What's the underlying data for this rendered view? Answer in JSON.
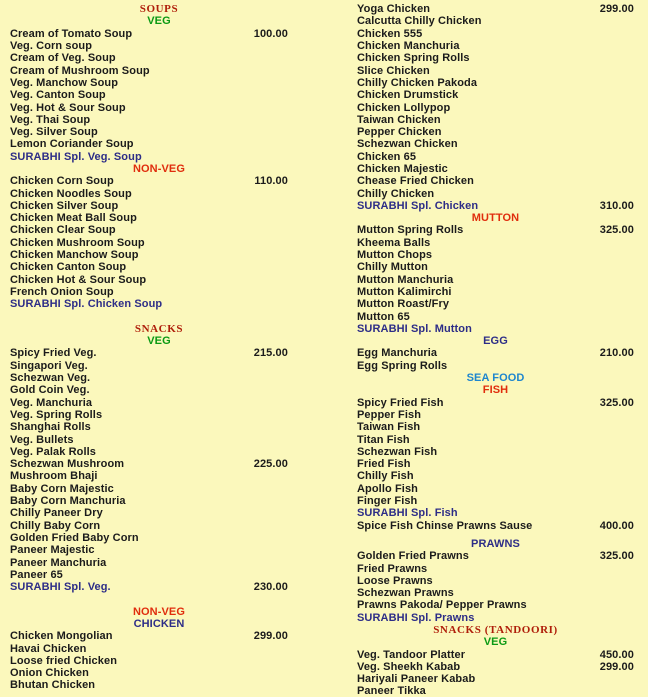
{
  "title": "SURABHI restaurant menu page",
  "colors": {
    "background": "#FBF8BC",
    "serif_red": "#AF1E0A",
    "sans_red": "#E02D0D",
    "green": "#0B9A14",
    "navy": "#2D2D87",
    "sea_blue": "#1E86CE",
    "item_text": "#1B1B1B"
  },
  "menu": {
    "columns": [
      {
        "name": "left",
        "rows": [
          {
            "t": "h",
            "s": "serif-red",
            "text": "SOUPS"
          },
          {
            "t": "h",
            "s": "green",
            "text": "VEG"
          },
          {
            "t": "i",
            "text": "Cream of Tomato Soup",
            "price": "100.00"
          },
          {
            "t": "i",
            "text": "Veg. Corn soup"
          },
          {
            "t": "i",
            "text": "Cream of Veg. Soup"
          },
          {
            "t": "i",
            "text": "Cream of Mushroom Soup"
          },
          {
            "t": "i",
            "text": "Veg. Manchow Soup"
          },
          {
            "t": "i",
            "text": "Veg. Canton Soup"
          },
          {
            "t": "i",
            "text": "Veg. Hot & Sour Soup"
          },
          {
            "t": "i",
            "text": "Veg. Thai Soup"
          },
          {
            "t": "i",
            "text": "Veg. Silver Soup"
          },
          {
            "t": "i",
            "text": "Lemon Coriander Soup"
          },
          {
            "t": "i",
            "s": "navy",
            "text": "SURABHI Spl. Veg. Soup"
          },
          {
            "t": "h",
            "s": "sans-red",
            "text": "NON-VEG"
          },
          {
            "t": "i",
            "text": "Chicken Corn Soup",
            "price": "110.00"
          },
          {
            "t": "i",
            "text": "Chicken Noodles Soup"
          },
          {
            "t": "i",
            "text": "Chicken Silver Soup"
          },
          {
            "t": "i",
            "text": "Chicken Meat Ball Soup"
          },
          {
            "t": "i",
            "text": "Chicken Clear Soup"
          },
          {
            "t": "i",
            "text": "Chicken Mushroom Soup"
          },
          {
            "t": "i",
            "text": "Chicken Manchow Soup"
          },
          {
            "t": "i",
            "text": "Chicken Canton Soup"
          },
          {
            "t": "i",
            "text": "Chicken Hot & Sour Soup"
          },
          {
            "t": "i",
            "text": "French Onion Soup"
          },
          {
            "t": "i",
            "s": "navy",
            "text": "SURABHI Spl. Chicken Soup"
          },
          {
            "t": "gap"
          },
          {
            "t": "h",
            "s": "serif-red",
            "text": "SNACKS"
          },
          {
            "t": "h",
            "s": "green",
            "text": "VEG"
          },
          {
            "t": "i",
            "text": "Spicy Fried Veg.",
            "price": "215.00"
          },
          {
            "t": "i",
            "text": "Singapori Veg."
          },
          {
            "t": "i",
            "text": "Schezwan Veg."
          },
          {
            "t": "i",
            "text": "Gold Coin Veg."
          },
          {
            "t": "i",
            "text": "Veg. Manchuria"
          },
          {
            "t": "i",
            "text": "Veg. Spring Rolls"
          },
          {
            "t": "i",
            "text": "Shanghai Rolls"
          },
          {
            "t": "i",
            "text": "Veg. Bullets"
          },
          {
            "t": "i",
            "text": "Veg. Palak Rolls"
          },
          {
            "t": "i",
            "text": "Schezwan Mushroom",
            "price": "225.00"
          },
          {
            "t": "i",
            "text": "Mushroom Bhaji"
          },
          {
            "t": "i",
            "text": "Baby Corn Majestic"
          },
          {
            "t": "i",
            "text": "Baby Corn Manchuria"
          },
          {
            "t": "i",
            "text": "Chilly Paneer Dry"
          },
          {
            "t": "i",
            "text": "Chilly Baby Corn"
          },
          {
            "t": "i",
            "text": "Golden Fried Baby Corn"
          },
          {
            "t": "i",
            "text": "Paneer Majestic"
          },
          {
            "t": "i",
            "text": "Paneer Manchuria"
          },
          {
            "t": "i",
            "text": "Paneer 65"
          },
          {
            "t": "i",
            "s": "navy",
            "text": "SURABHI Spl. Veg.",
            "price": "230.00"
          },
          {
            "t": "gap"
          },
          {
            "t": "h",
            "s": "sans-red",
            "text": "NON-VEG"
          },
          {
            "t": "h",
            "s": "navy",
            "text": "CHICKEN"
          },
          {
            "t": "i",
            "text": "Chicken Mongolian",
            "price": "299.00"
          },
          {
            "t": "i",
            "text": "Havai Chicken"
          },
          {
            "t": "i",
            "text": "Loose fried Chicken"
          },
          {
            "t": "i",
            "text": "Onion Chicken"
          },
          {
            "t": "i",
            "text": "Bhutan Chicken"
          }
        ]
      },
      {
        "name": "right",
        "rows": [
          {
            "t": "i",
            "text": "Yoga Chicken",
            "price": "299.00"
          },
          {
            "t": "i",
            "text": "Calcutta Chilly Chicken"
          },
          {
            "t": "i",
            "text": "Chicken 555"
          },
          {
            "t": "i",
            "text": "Chicken Manchuria"
          },
          {
            "t": "i",
            "text": "Chicken Spring Rolls"
          },
          {
            "t": "i",
            "text": "Slice Chicken"
          },
          {
            "t": "i",
            "text": "Chilly Chicken Pakoda"
          },
          {
            "t": "i",
            "text": "Chicken Drumstick"
          },
          {
            "t": "i",
            "text": "Chicken Lollypop"
          },
          {
            "t": "i",
            "text": "Taiwan Chicken"
          },
          {
            "t": "i",
            "text": "Pepper Chicken"
          },
          {
            "t": "i",
            "text": "Schezwan Chicken"
          },
          {
            "t": "i",
            "text": "Chicken 65"
          },
          {
            "t": "i",
            "text": "Chicken Majestic"
          },
          {
            "t": "i",
            "text": "Chease Fried Chicken"
          },
          {
            "t": "i",
            "text": "Chilly Chicken"
          },
          {
            "t": "i",
            "s": "navy",
            "text": "SURABHI Spl. Chicken",
            "price": "310.00"
          },
          {
            "t": "h",
            "s": "sans-red",
            "text": "MUTTON"
          },
          {
            "t": "i",
            "text": "Mutton Spring Rolls",
            "price": "325.00"
          },
          {
            "t": "i",
            "text": "Kheema Balls"
          },
          {
            "t": "i",
            "text": "Mutton Chops"
          },
          {
            "t": "i",
            "text": "Chilly Mutton"
          },
          {
            "t": "i",
            "text": "Mutton Manchuria"
          },
          {
            "t": "i",
            "text": "Mutton Kalimirchi"
          },
          {
            "t": "i",
            "text": "Mutton Roast/Fry"
          },
          {
            "t": "i",
            "text": "Mutton 65"
          },
          {
            "t": "i",
            "s": "navy",
            "text": "SURABHI Spl. Mutton"
          },
          {
            "t": "h",
            "s": "navy",
            "text": "EGG"
          },
          {
            "t": "i",
            "text": "Egg Manchuria",
            "price": "210.00"
          },
          {
            "t": "i",
            "text": "Egg Spring Rolls"
          },
          {
            "t": "h",
            "s": "sea-blue",
            "text": "SEA FOOD"
          },
          {
            "t": "h",
            "s": "sans-red",
            "text": "FISH"
          },
          {
            "t": "i",
            "text": "Spicy Fried Fish",
            "price": "325.00"
          },
          {
            "t": "i",
            "text": "Pepper Fish"
          },
          {
            "t": "i",
            "text": "Taiwan Fish"
          },
          {
            "t": "i",
            "text": "Titan Fish"
          },
          {
            "t": "i",
            "text": "Schezwan Fish"
          },
          {
            "t": "i",
            "text": "Fried Fish"
          },
          {
            "t": "i",
            "text": "Chilly Fish"
          },
          {
            "t": "i",
            "text": "Apollo Fish"
          },
          {
            "t": "i",
            "text": "Finger Fish"
          },
          {
            "t": "i",
            "s": "navy",
            "text": "SURABHI Spl. Fish"
          },
          {
            "t": "i",
            "text": "Spice Fish Chinse Prawns Sause",
            "price": "400.00"
          },
          {
            "t": "gap",
            "h": "half"
          },
          {
            "t": "h",
            "s": "navy",
            "text": "PRAWNS"
          },
          {
            "t": "i",
            "text": "Golden Fried Prawns",
            "price": "325.00"
          },
          {
            "t": "i",
            "text": "Fried Prawns"
          },
          {
            "t": "i",
            "text": "Loose Prawns"
          },
          {
            "t": "i",
            "text": "Schezwan Prawns"
          },
          {
            "t": "i",
            "text": "Prawns Pakoda/ Pepper Prawns"
          },
          {
            "t": "i",
            "s": "navy",
            "text": "SURABHI Spl. Prawns"
          },
          {
            "t": "h",
            "s": "serif-red",
            "text": "SNACKS (TANDOORI)"
          },
          {
            "t": "h",
            "s": "green",
            "text": "VEG"
          },
          {
            "t": "i",
            "text": "Veg. Tandoor Platter",
            "price": "450.00"
          },
          {
            "t": "i",
            "text": "Veg. Sheekh Kabab",
            "price": "299.00"
          },
          {
            "t": "i",
            "text": "Hariyali Paneer Kabab"
          },
          {
            "t": "i",
            "text": "Paneer Tikka"
          }
        ]
      }
    ]
  }
}
